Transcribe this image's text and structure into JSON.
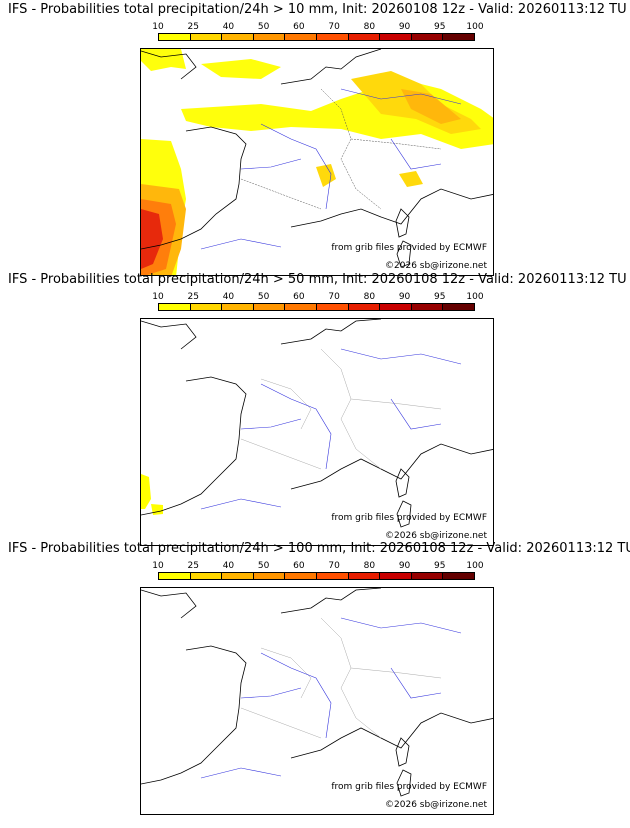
{
  "colorbar": {
    "ticks": [
      "10",
      "25",
      "40",
      "50",
      "60",
      "70",
      "80",
      "90",
      "95",
      "100"
    ],
    "colors": [
      "#ffff00",
      "#ffd700",
      "#ffb400",
      "#ff9600",
      "#ff7800",
      "#ff5000",
      "#e61e00",
      "#c80000",
      "#960000",
      "#640000"
    ]
  },
  "panels": [
    {
      "title": "IFS - Probabilities total precipitation/24h > 10 mm, Init: 20260108 12z - Valid: 20260113:12 TU",
      "source_credit": "from grib files provided by ECMWF",
      "copyright": "©2026 sb@irizone.net"
    },
    {
      "title": "IFS - Probabilities total precipitation/24h > 50 mm, Init: 20260108 12z - Valid: 20260113:12 TU",
      "source_credit": "from grib files provided by ECMWF",
      "copyright": "©2026 sb@irizone.net"
    },
    {
      "title": "IFS - Probabilities total precipitation/24h > 100 mm, Init: 20260108 12z - Valid: 20260113:12 TU",
      "source_credit": "from grib files provided by ECMWF",
      "copyright": "©2026 sb@irizone.net"
    }
  ]
}
